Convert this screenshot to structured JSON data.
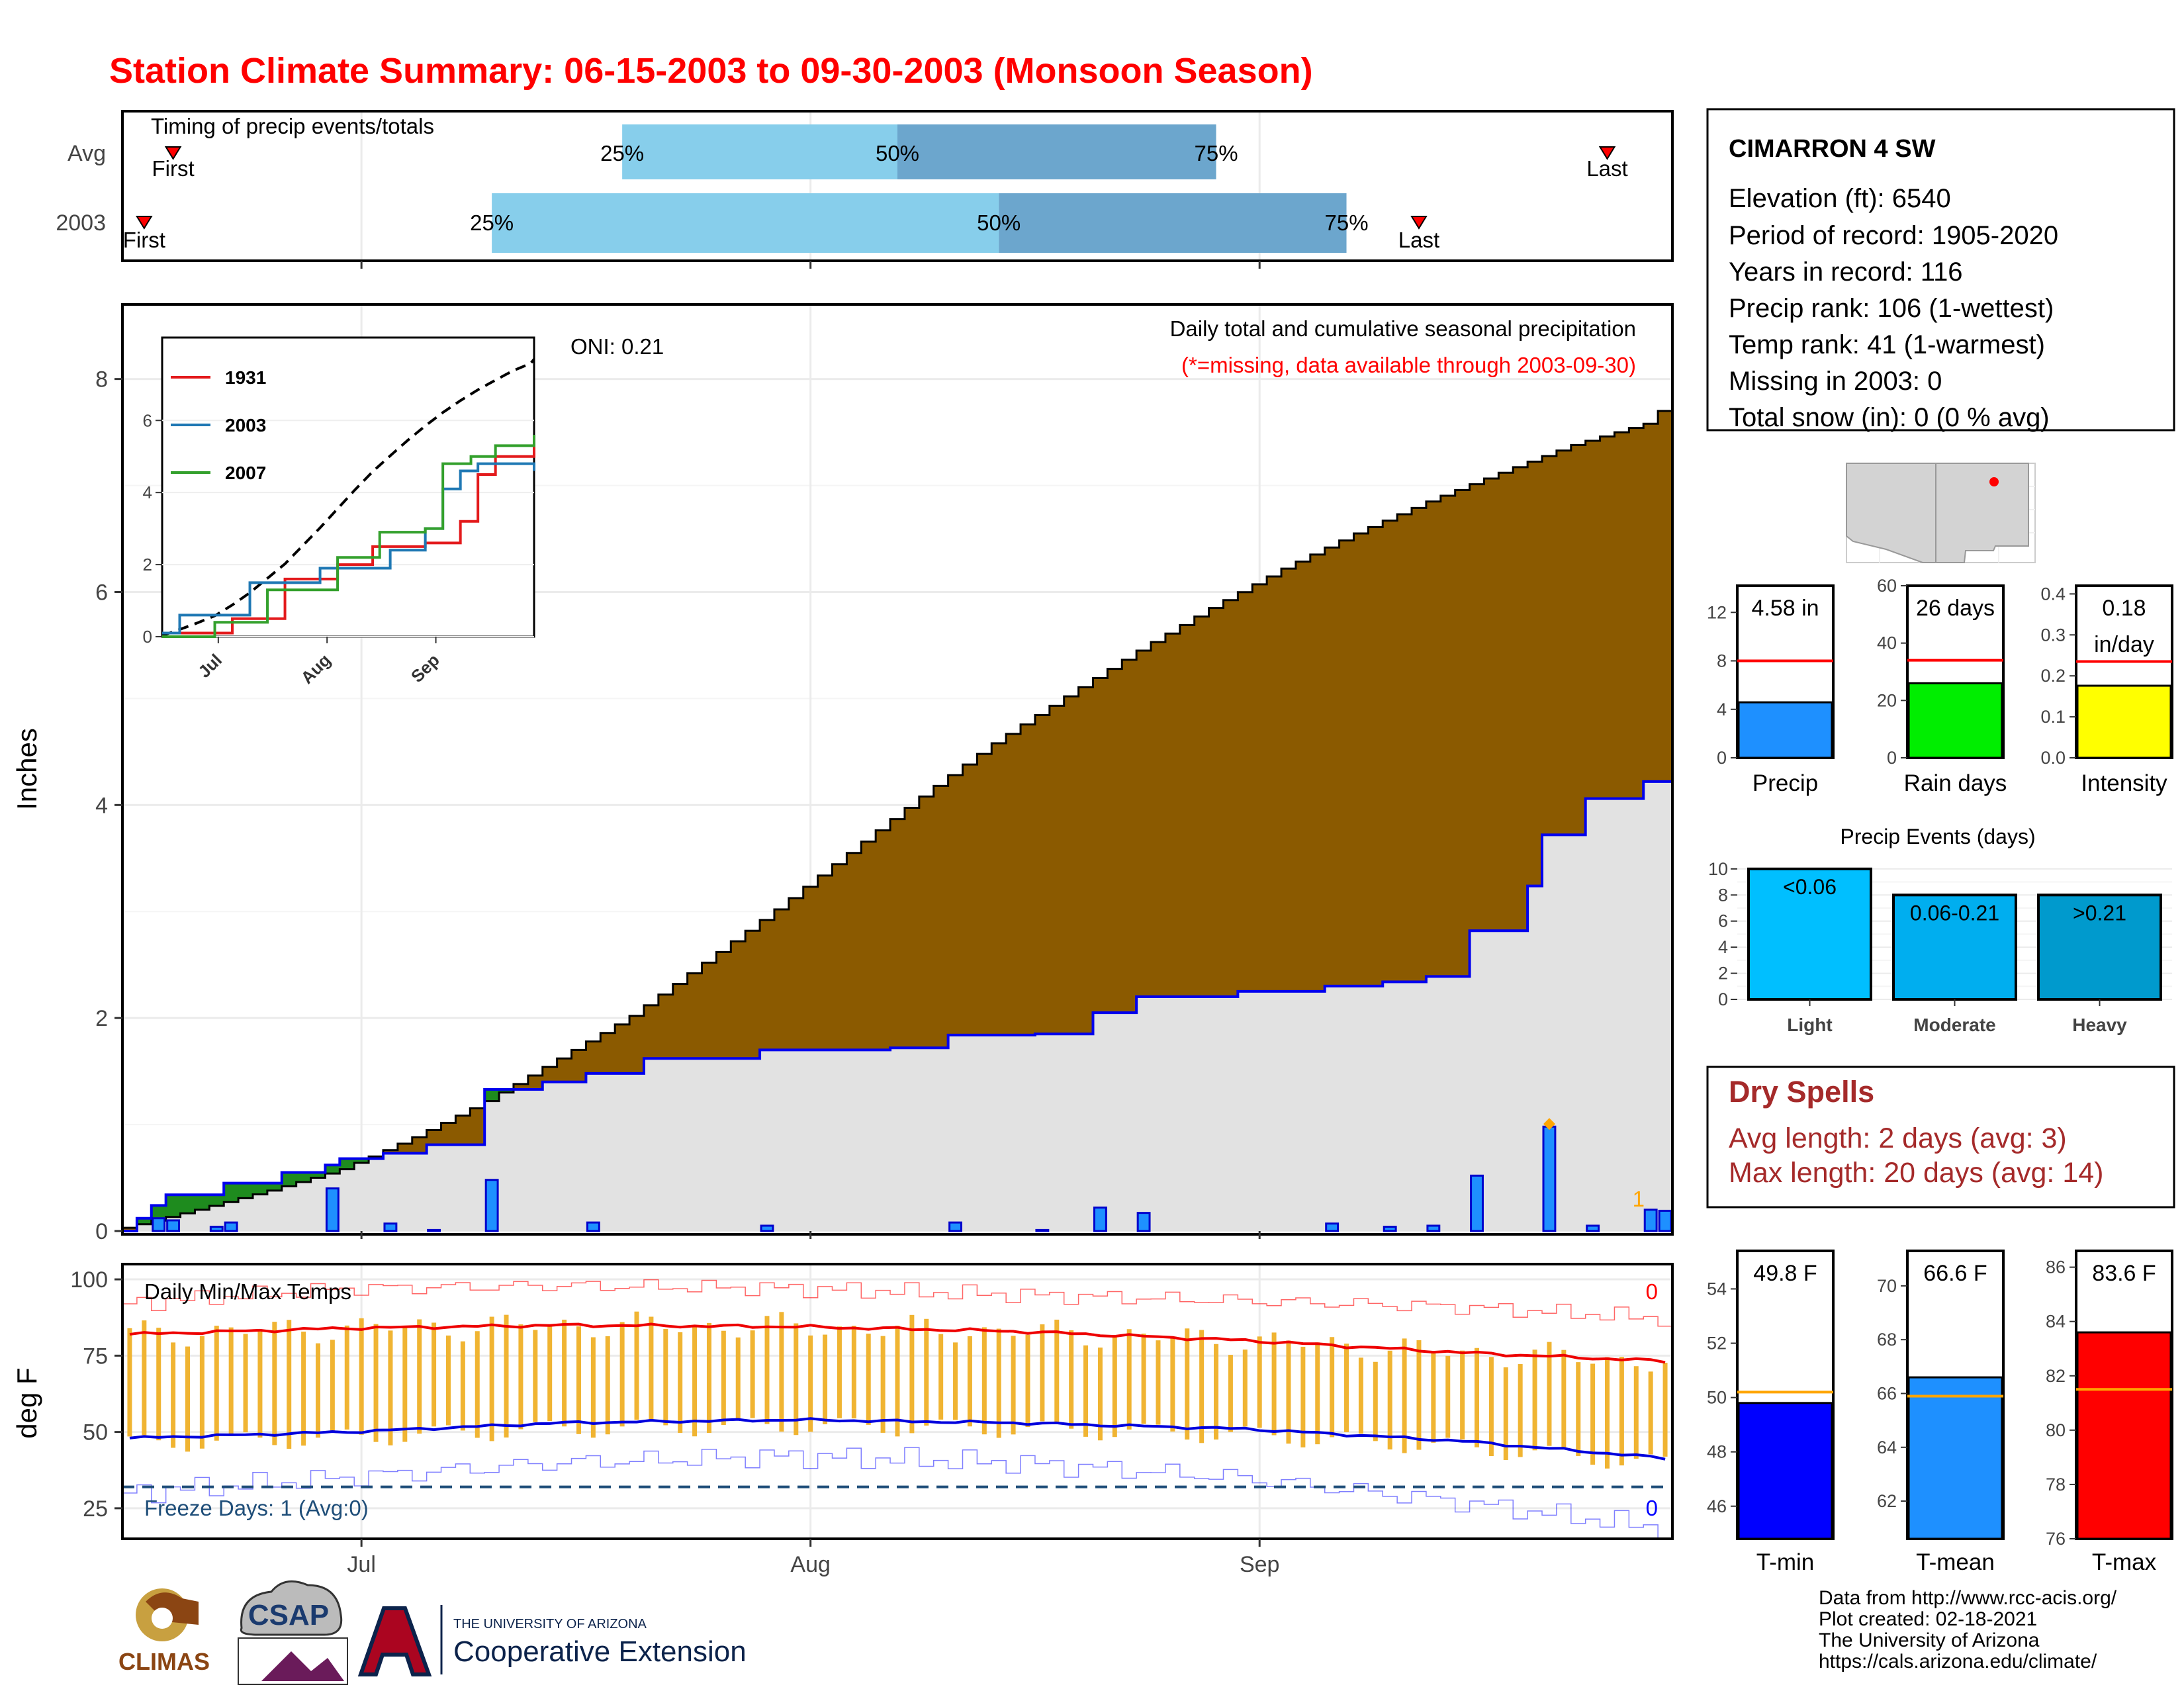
{
  "title": "Station Climate Summary: 06-15-2003 to 09-30-2003 (Monsoon Season)",
  "timing": {
    "title": "Timing of precip events/totals",
    "rows": [
      {
        "label": "Avg",
        "first": "06-18",
        "q25": "07-19",
        "q50": "08-07",
        "q75": "08-29",
        "last": "09-25"
      },
      {
        "label": "2003",
        "first": "06-16",
        "q25": "07-10",
        "q50": "08-14",
        "q75": "09-07",
        "last": "09-12"
      }
    ],
    "first_label": "First",
    "last_label": "Last",
    "q25_label": "25%",
    "q50_label": "50%",
    "q75_label": "75%"
  },
  "station": {
    "name": "CIMARRON 4 SW",
    "lines": [
      "Elevation (ft): 6540",
      "Period of record: 1905-2020",
      "Years in record: 116",
      "Precip rank: 106 (1-wettest)",
      "Temp rank: 41 (1-warmest)",
      "Missing in 2003: 0",
      "Total snow (in): 0 (0 % avg)"
    ]
  },
  "precip_panel": {
    "ylabel": "Inches",
    "oni": "ONI: 0.21",
    "note1": "Daily total and cumulative seasonal precipitation",
    "note2": "(*=missing, data available through 2003-09-30)",
    "corner_count": "1",
    "colors": {
      "avg_fill": "#8B5A00",
      "deficit_fill": "#8B5A00",
      "surplus_fill": "#1E8B1E",
      "obs_fill": "#E2E2E2",
      "obs_line": "#0000EE",
      "bar": "#1E90FF"
    }
  },
  "inset": {
    "series": [
      {
        "name": "1931",
        "color": "#E31A1C"
      },
      {
        "name": "2003",
        "color": "#1F78B4"
      },
      {
        "name": "2007",
        "color": "#33A02C"
      }
    ]
  },
  "temp_panel": {
    "ylabel": "deg F",
    "title": "Daily Min/Max Temps",
    "freeze": "Freeze Days: 1 (Avg:0)",
    "count_hi": "0",
    "count_lo": "0"
  },
  "mini_bars": [
    {
      "label": "Precip",
      "value_text": "4.58 in",
      "value": 4.58,
      "avg": 8.0,
      "ymax": 14.2,
      "ticks": [
        0,
        4,
        8,
        12
      ],
      "color": "#1E90FF"
    },
    {
      "label": "Rain days",
      "value_text": "26 days",
      "value": 26,
      "avg": 34,
      "ymax": 60,
      "ticks": [
        0,
        20,
        40,
        60
      ],
      "color": "#00EE00"
    },
    {
      "label": "Intensity",
      "value_text": "0.18\nin/day",
      "value": 0.176,
      "avg": 0.235,
      "ymax": 0.42,
      "ticks": [
        "0.0",
        "0.1",
        "0.2",
        "0.3",
        "0.4"
      ],
      "color": "#FFFF00"
    }
  ],
  "events": {
    "title": "Precip Events (days)",
    "categories": [
      "Light",
      "Moderate",
      "Heavy"
    ],
    "labels": [
      "<0.06",
      "0.06-0.21",
      ">0.21"
    ],
    "values": [
      10,
      8,
      8
    ],
    "colors": [
      "#00BFFF",
      "#00AEEF",
      "#009ACD"
    ],
    "ticks": [
      0,
      2,
      4,
      6,
      8,
      10
    ]
  },
  "dry_spells": {
    "title": "Dry Spells",
    "line1": "Avg length: 2 days (avg: 3)",
    "line2": "Max length: 20 days (avg: 14)"
  },
  "temp_bars": [
    {
      "label": "T-min",
      "value_text": "49.8 F",
      "value": 49.8,
      "avg": 50.2,
      "ymin": 44.8,
      "ymax": 55.4,
      "ticks": [
        46,
        48,
        50,
        52,
        54
      ],
      "color": "#0000FF"
    },
    {
      "label": "T-mean",
      "value_text": "66.6 F",
      "value": 66.6,
      "avg": 65.9,
      "ymin": 60.6,
      "ymax": 71.3,
      "ticks": [
        62,
        64,
        66,
        68,
        70
      ],
      "color": "#1E90FF"
    },
    {
      "label": "T-max",
      "value_text": "83.6 F",
      "value": 83.6,
      "avg": 81.5,
      "ymin": 76,
      "ymax": 86.6,
      "ticks": [
        76,
        78,
        80,
        82,
        84,
        86
      ],
      "color": "#FF0000"
    }
  ],
  "footer": {
    "lines": [
      "Data from http://www.rcc-acis.org/",
      "Plot created: 02-18-2021",
      "The University of Arizona",
      "https://cals.arizona.edu/climate/"
    ],
    "logos": {
      "climas": "CLIMAS",
      "csap": "CSAP",
      "ua_top": "THE UNIVERSITY OF ARIZONA",
      "ua_bottom": "Cooperative Extension"
    }
  },
  "chart_data": {
    "type": "area",
    "title": "Daily total and cumulative seasonal precipitation",
    "x_start": "2003-06-15",
    "x_end": "2003-09-30",
    "xticks": [
      "Jul",
      "Aug",
      "Sep"
    ],
    "ylabel": "Inches",
    "ylim": [
      0,
      8.7
    ],
    "yticks": [
      0,
      2,
      4,
      6,
      8
    ],
    "avg_cumulative": [
      [
        "06-15",
        0.03
      ],
      [
        "06-20",
        0.2
      ],
      [
        "06-25",
        0.38
      ],
      [
        "06-30",
        0.58
      ],
      [
        "07-05",
        0.88
      ],
      [
        "07-10",
        1.22
      ],
      [
        "07-15",
        1.62
      ],
      [
        "07-20",
        2.02
      ],
      [
        "07-25",
        2.52
      ],
      [
        "07-30",
        3.02
      ],
      [
        "08-04",
        3.55
      ],
      [
        "08-09",
        4.08
      ],
      [
        "08-14",
        4.58
      ],
      [
        "08-19",
        5.02
      ],
      [
        "08-24",
        5.45
      ],
      [
        "08-29",
        5.85
      ],
      [
        "09-03",
        6.22
      ],
      [
        "09-08",
        6.55
      ],
      [
        "09-13",
        6.85
      ],
      [
        "09-18",
        7.12
      ],
      [
        "09-23",
        7.38
      ],
      [
        "09-28",
        7.58
      ],
      [
        "09-30",
        7.82
      ]
    ],
    "daily_precip": [
      [
        "06-17",
        0.12
      ],
      [
        "06-18",
        0.1
      ],
      [
        "06-21",
        0.04
      ],
      [
        "06-22",
        0.08
      ],
      [
        "06-29",
        0.4
      ],
      [
        "07-03",
        0.07
      ],
      [
        "07-06",
        0.01
      ],
      [
        "07-10",
        0.48
      ],
      [
        "07-17",
        0.08
      ],
      [
        "07-29",
        0.05
      ],
      [
        "08-11",
        0.08
      ],
      [
        "08-17",
        0.01
      ],
      [
        "08-21",
        0.22
      ],
      [
        "08-24",
        0.17
      ],
      [
        "09-06",
        0.07
      ],
      [
        "09-10",
        0.04
      ],
      [
        "09-13",
        0.05
      ],
      [
        "09-16",
        0.52
      ],
      [
        "09-21",
        0.98
      ],
      [
        "09-24",
        0.05
      ],
      [
        "09-28",
        0.2
      ],
      [
        "09-29",
        0.19
      ]
    ],
    "ytd_cumulative_2003": [
      [
        "06-15",
        0.0
      ],
      [
        "06-16",
        0.12
      ],
      [
        "06-17",
        0.24
      ],
      [
        "06-18",
        0.34
      ],
      [
        "06-22",
        0.45
      ],
      [
        "06-26",
        0.55
      ],
      [
        "06-29",
        0.62
      ],
      [
        "06-30",
        0.68
      ],
      [
        "07-03",
        0.73
      ],
      [
        "07-06",
        0.81
      ],
      [
        "07-10",
        1.33
      ],
      [
        "07-14",
        1.4
      ],
      [
        "07-17",
        1.48
      ],
      [
        "07-21",
        1.62
      ],
      [
        "07-29",
        1.7
      ],
      [
        "08-07",
        1.72
      ],
      [
        "08-11",
        1.84
      ],
      [
        "08-17",
        1.85
      ],
      [
        "08-21",
        2.05
      ],
      [
        "08-24",
        2.2
      ],
      [
        "08-31",
        2.25
      ],
      [
        "09-06",
        2.3
      ],
      [
        "09-10",
        2.34
      ],
      [
        "09-13",
        2.39
      ],
      [
        "09-16",
        2.82
      ],
      [
        "09-20",
        3.24
      ],
      [
        "09-21",
        3.72
      ],
      [
        "09-24",
        4.06
      ],
      [
        "09-28",
        4.22
      ],
      [
        "09-30",
        4.58
      ]
    ],
    "temps": {
      "ylim": [
        15,
        105
      ],
      "yticks": [
        25,
        50,
        75,
        100
      ],
      "freeze_line": 32,
      "avg_max": [
        [
          "06-15",
          82
        ],
        [
          "06-30",
          84
        ],
        [
          "07-15",
          85
        ],
        [
          "07-31",
          84.5
        ],
        [
          "08-15",
          83
        ],
        [
          "08-31",
          80
        ],
        [
          "09-15",
          76
        ],
        [
          "09-30",
          73
        ]
      ],
      "avg_min": [
        [
          "06-15",
          48
        ],
        [
          "06-30",
          50
        ],
        [
          "07-15",
          53
        ],
        [
          "07-31",
          54
        ],
        [
          "08-15",
          53
        ],
        [
          "08-31",
          51
        ],
        [
          "09-15",
          47
        ],
        [
          "09-30",
          41
        ]
      ],
      "record_max": [
        [
          "06-15",
          92
        ],
        [
          "06-30",
          97
        ],
        [
          "07-15",
          98
        ],
        [
          "07-31",
          97
        ],
        [
          "08-15",
          95
        ],
        [
          "08-31",
          93
        ],
        [
          "09-15",
          91
        ],
        [
          "09-30",
          87
        ]
      ],
      "record_min": [
        [
          "06-15",
          30
        ],
        [
          "06-30",
          35
        ],
        [
          "07-15",
          40
        ],
        [
          "07-31",
          42
        ],
        [
          "08-15",
          40
        ],
        [
          "08-31",
          35
        ],
        [
          "09-15",
          27
        ],
        [
          "09-30",
          18
        ]
      ]
    }
  }
}
